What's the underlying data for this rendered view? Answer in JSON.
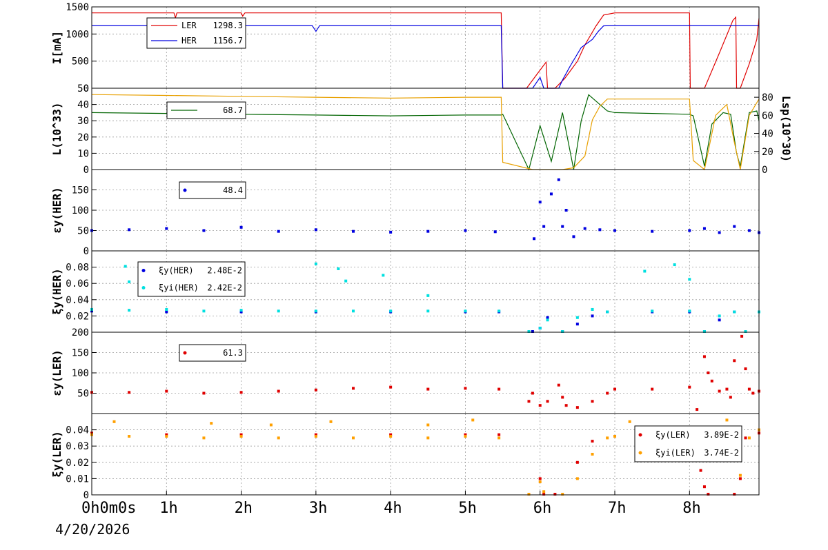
{
  "colors": {
    "LER": "#e00000",
    "HER": "#0000e0",
    "L": "#006400",
    "Lsp": "#e8a000",
    "cyan": "#00e0e0",
    "orange": "#ffa000"
  },
  "x_axis": {
    "range_hours": [
      0,
      8.93
    ],
    "tick_hours": [
      0,
      1,
      2,
      3,
      4,
      5,
      6,
      7,
      8
    ],
    "start_label": "0h0m0s",
    "labels": [
      "1h",
      "2h",
      "3h",
      "4h",
      "5h",
      "6h",
      "7h",
      "8h"
    ],
    "date": "4/20/2026"
  },
  "chart_data": [
    {
      "type": "line",
      "ylabel": "I[mA]",
      "ylim": [
        0,
        1500
      ],
      "yticks": [
        0,
        500,
        1000,
        1500
      ],
      "series": [
        {
          "name": "LER",
          "color": "#e00000",
          "x": [
            0,
            1.1,
            1.12,
            1.14,
            2.0,
            2.02,
            2.05,
            5.48,
            5.5,
            5.82,
            5.97,
            6.08,
            6.1,
            6.2,
            6.33,
            6.5,
            6.6,
            6.75,
            6.85,
            7.0,
            8.0,
            8.01,
            8.2,
            8.4,
            8.58,
            8.62,
            8.63,
            8.68,
            8.8,
            8.9,
            8.93
          ],
          "y": [
            1390,
            1390,
            1300,
            1390,
            1390,
            1330,
            1390,
            1390,
            0,
            0,
            280,
            480,
            0,
            0,
            180,
            500,
            800,
            1150,
            1350,
            1390,
            1390,
            0,
            0,
            650,
            1250,
            1310,
            0,
            0,
            450,
            900,
            1290
          ]
        },
        {
          "name": "HER",
          "color": "#0000e0",
          "x": [
            0,
            2.95,
            3.0,
            3.05,
            5.48,
            5.5,
            5.9,
            6.0,
            6.05,
            6.25,
            6.3,
            6.4,
            6.55,
            6.7,
            6.78,
            6.85,
            6.95,
            8.93
          ],
          "y": [
            1155,
            1155,
            1050,
            1155,
            1155,
            0,
            0,
            200,
            0,
            0,
            150,
            400,
            750,
            900,
            1050,
            1150,
            1155,
            1155
          ]
        }
      ],
      "legend": {
        "entries": [
          {
            "label": "LER",
            "value": "1298.3"
          },
          {
            "label": "HER",
            "value": "1156.7"
          }
        ]
      }
    },
    {
      "type": "line",
      "ylabel": "L(10^33)",
      "ylim": [
        0,
        50
      ],
      "yticks": [
        0,
        10,
        20,
        30,
        40,
        50
      ],
      "y2label": "Lsp(10^30)",
      "y2lim": [
        0,
        90
      ],
      "y2ticks": [
        0,
        20,
        40,
        60,
        80
      ],
      "series": [
        {
          "name": "L",
          "color": "#006400",
          "axis": "left",
          "x": [
            0,
            1.0,
            2.0,
            3.0,
            4.0,
            5.0,
            5.48,
            5.5,
            5.85,
            6.0,
            6.15,
            6.3,
            6.45,
            6.55,
            6.65,
            6.8,
            6.9,
            7.0,
            8.0,
            8.05,
            8.2,
            8.3,
            8.45,
            8.55,
            8.63,
            8.68,
            8.8,
            8.9,
            8.93
          ],
          "y": [
            35,
            34.5,
            34,
            33.5,
            33,
            33.5,
            33.5,
            34,
            0,
            27,
            5,
            35,
            0,
            30,
            46,
            40,
            36,
            35,
            34,
            33,
            2,
            28,
            35,
            34,
            10,
            2,
            35,
            36,
            30
          ]
        },
        {
          "name": "Lsp",
          "color": "#e8a000",
          "axis": "right",
          "x": [
            0,
            1.0,
            2.0,
            3.0,
            4.0,
            5.0,
            5.48,
            5.5,
            5.9,
            6.3,
            6.45,
            6.6,
            6.7,
            6.8,
            6.9,
            8.0,
            8.05,
            8.2,
            8.35,
            8.5,
            8.6,
            8.68,
            8.8,
            8.93
          ],
          "y": [
            83,
            82,
            81,
            80,
            79,
            80,
            80,
            8,
            0,
            0,
            2,
            15,
            55,
            70,
            78,
            78,
            10,
            0,
            60,
            72,
            30,
            0,
            60,
            78
          ]
        }
      ],
      "legend": {
        "entries": [
          {
            "label": "",
            "value": "68.7"
          }
        ]
      }
    },
    {
      "type": "scatter",
      "ylabel": "εy(HER)",
      "ylim": [
        0,
        200
      ],
      "yticks": [
        0,
        50,
        100,
        150
      ],
      "series": [
        {
          "name": "εy(HER)",
          "color": "#0000e0",
          "x": [
            0,
            0.5,
            1.0,
            1.5,
            2.0,
            2.5,
            3.0,
            3.5,
            4.0,
            4.5,
            5.0,
            5.4,
            5.92,
            6.0,
            6.05,
            6.15,
            6.25,
            6.3,
            6.35,
            6.45,
            6.6,
            6.8,
            7.0,
            7.5,
            8.0,
            8.2,
            8.4,
            8.6,
            8.8,
            8.93
          ],
          "y": [
            50,
            52,
            55,
            50,
            58,
            48,
            52,
            48,
            46,
            48,
            50,
            47,
            30,
            120,
            60,
            140,
            175,
            60,
            100,
            35,
            55,
            52,
            50,
            48,
            50,
            55,
            45,
            60,
            50,
            45
          ]
        }
      ],
      "legend": {
        "entries": [
          {
            "label": "",
            "value": "48.4"
          }
        ]
      }
    },
    {
      "type": "scatter",
      "ylabel": "ξy(HER)",
      "ylim": [
        0,
        0.1
      ],
      "yticks": [
        0.02,
        0.04,
        0.06,
        0.08
      ],
      "series": [
        {
          "name": "ξy(HER)",
          "color": "#0000e0",
          "x": [
            0,
            1.0,
            2.0,
            3.0,
            4.0,
            5.0,
            5.45,
            5.9,
            6.0,
            6.1,
            6.3,
            6.5,
            6.7,
            6.9,
            7.5,
            8.0,
            8.2,
            8.4,
            8.6,
            8.75,
            8.93
          ],
          "y": [
            0.026,
            0.025,
            0.025,
            0.025,
            0.025,
            0.025,
            0.025,
            0.0,
            0.005,
            0.018,
            0.0,
            0.01,
            0.02,
            0.025,
            0.025,
            0.025,
            0.0,
            0.015,
            0.025,
            0.0,
            0.025
          ]
        },
        {
          "name": "ξyi(HER)",
          "color": "#00e0e0",
          "x": [
            0,
            0.5,
            1.0,
            1.5,
            2.0,
            2.5,
            3.0,
            3.5,
            4.0,
            4.5,
            5.0,
            5.45,
            5.85,
            6.0,
            6.1,
            6.3,
            6.5,
            6.7,
            6.9,
            7.5,
            8.0,
            8.2,
            8.4,
            8.6,
            8.75,
            8.93,
            0.45,
            0.5,
            3.0,
            3.3,
            3.4,
            3.9,
            4.5,
            7.4,
            7.8,
            8.0
          ],
          "y": [
            0.028,
            0.027,
            0.028,
            0.026,
            0.027,
            0.026,
            0.026,
            0.026,
            0.026,
            0.026,
            0.026,
            0.026,
            0.0,
            0.005,
            0.015,
            0.0,
            0.018,
            0.028,
            0.025,
            0.026,
            0.026,
            0.0,
            0.02,
            0.025,
            0.0,
            0.025,
            0.081,
            0.062,
            0.084,
            0.078,
            0.063,
            0.07,
            0.045,
            0.075,
            0.083,
            0.065
          ]
        }
      ],
      "legend": {
        "entries": [
          {
            "label": "ξy(HER)",
            "value": "2.48E-2"
          },
          {
            "label": "ξyi(HER)",
            "value": "2.42E-2"
          }
        ]
      }
    },
    {
      "type": "scatter",
      "ylabel": "εy(LER)",
      "ylim": [
        0,
        200
      ],
      "yticks": [
        50,
        100,
        150,
        200
      ],
      "series": [
        {
          "name": "εy(LER)",
          "color": "#e00000",
          "x": [
            0,
            0.5,
            1.0,
            1.5,
            2.0,
            2.5,
            3.0,
            3.5,
            4.0,
            4.5,
            5.0,
            5.45,
            5.85,
            5.9,
            6.0,
            6.1,
            6.25,
            6.3,
            6.35,
            6.5,
            6.7,
            6.9,
            7.0,
            7.5,
            8.0,
            8.1,
            8.2,
            8.25,
            8.3,
            8.4,
            8.5,
            8.55,
            8.6,
            8.7,
            8.75,
            8.8,
            8.85,
            8.93
          ],
          "y": [
            52,
            52,
            55,
            50,
            52,
            55,
            58,
            62,
            65,
            60,
            62,
            60,
            30,
            50,
            20,
            30,
            70,
            40,
            20,
            15,
            30,
            50,
            60,
            60,
            65,
            10,
            140,
            100,
            80,
            55,
            60,
            40,
            130,
            190,
            110,
            60,
            50,
            55
          ]
        }
      ],
      "legend": {
        "entries": [
          {
            "label": "",
            "value": "61.3"
          }
        ]
      }
    },
    {
      "type": "scatter",
      "ylabel": "ξy(LER)",
      "ylim": [
        0,
        0.05
      ],
      "yticks": [
        0,
        0.01,
        0.02,
        0.03,
        0.04
      ],
      "series": [
        {
          "name": "ξy(LER)",
          "color": "#e00000",
          "x": [
            0,
            1.0,
            2.0,
            3.0,
            4.0,
            5.0,
            5.45,
            5.85,
            6.0,
            6.05,
            6.2,
            6.5,
            6.7,
            7.0,
            7.5,
            8.0,
            8.15,
            8.2,
            8.25,
            8.6,
            8.68,
            8.75,
            8.93
          ],
          "y": [
            0.038,
            0.037,
            0.037,
            0.037,
            0.037,
            0.037,
            0.037,
            0.0,
            0.01,
            0.0,
            0.0,
            0.02,
            0.033,
            0.036,
            0.037,
            0.035,
            0.015,
            0.005,
            0.0,
            0.0,
            0.01,
            0.035,
            0.038
          ]
        },
        {
          "name": "ξyi(LER)",
          "color": "#ffa000",
          "x": [
            0,
            0.5,
            1.0,
            1.5,
            2.0,
            2.5,
            3.0,
            3.5,
            4.0,
            4.5,
            5.0,
            5.45,
            5.85,
            6.0,
            6.05,
            6.3,
            6.5,
            6.7,
            6.9,
            7.0,
            7.5,
            8.0,
            8.3,
            8.6,
            8.68,
            8.8,
            8.93,
            0.3,
            1.6,
            2.4,
            3.2,
            4.5,
            5.1,
            7.2,
            8.5
          ],
          "y": [
            0.037,
            0.036,
            0.036,
            0.035,
            0.036,
            0.035,
            0.036,
            0.035,
            0.036,
            0.035,
            0.036,
            0.035,
            0.0,
            0.008,
            0.002,
            0.0,
            0.01,
            0.025,
            0.035,
            0.036,
            0.036,
            0.036,
            0.035,
            0.03,
            0.012,
            0.035,
            0.04,
            0.045,
            0.044,
            0.043,
            0.045,
            0.043,
            0.046,
            0.045,
            0.046
          ]
        }
      ],
      "legend": {
        "entries": [
          {
            "label": "ξy(LER)",
            "value": "3.89E-2"
          },
          {
            "label": "ξyi(LER)",
            "value": "3.74E-2"
          }
        ]
      }
    }
  ]
}
